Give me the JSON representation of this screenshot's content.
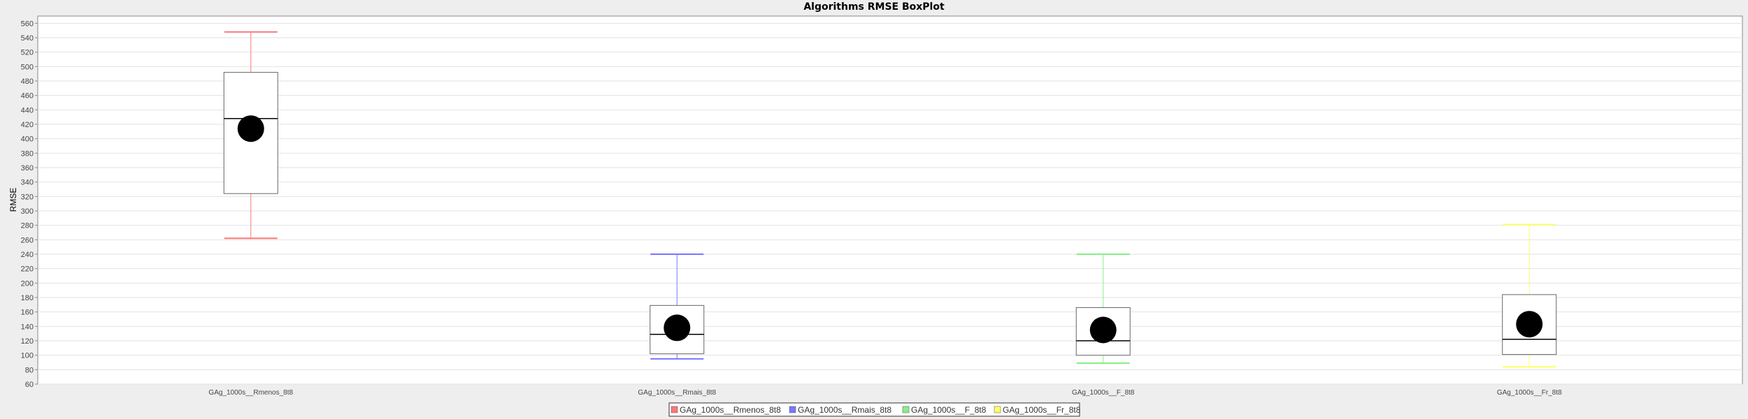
{
  "chart_data": {
    "type": "boxplot",
    "title": "Algorithms RMSE BoxPlot",
    "xlabel": "",
    "ylabel": "RMSE",
    "ylim": [
      60,
      570
    ],
    "ytick_step": 20,
    "grid": true,
    "legend_position": "bottom",
    "categories": [
      "GAg_1000s__Rmenos_8t8",
      "GAg_1000s__Rmais_8t8",
      "GAg_1000s__F_8t8",
      "GAg_1000s__Fr_8t8"
    ],
    "series": [
      {
        "name": "GAg_1000s__Rmenos_8t8",
        "color": "#ff7777",
        "whisker_low": 262,
        "q1": 324,
        "median": 428,
        "q3": 492,
        "whisker_high": 548,
        "mean": 414
      },
      {
        "name": "GAg_1000s__Rmais_8t8",
        "color": "#7777ff",
        "whisker_low": 95,
        "q1": 102,
        "median": 129,
        "q3": 169,
        "whisker_high": 240,
        "mean": 138
      },
      {
        "name": "GAg_1000s__F_8t8",
        "color": "#88ee88",
        "whisker_low": 89,
        "q1": 100,
        "median": 120,
        "q3": 166,
        "whisker_high": 240,
        "mean": 135
      },
      {
        "name": "GAg_1000s__Fr_8t8",
        "color": "#ffff66",
        "whisker_low": 84,
        "q1": 101,
        "median": 122,
        "q3": 184,
        "whisker_high": 281,
        "mean": 143
      }
    ]
  }
}
